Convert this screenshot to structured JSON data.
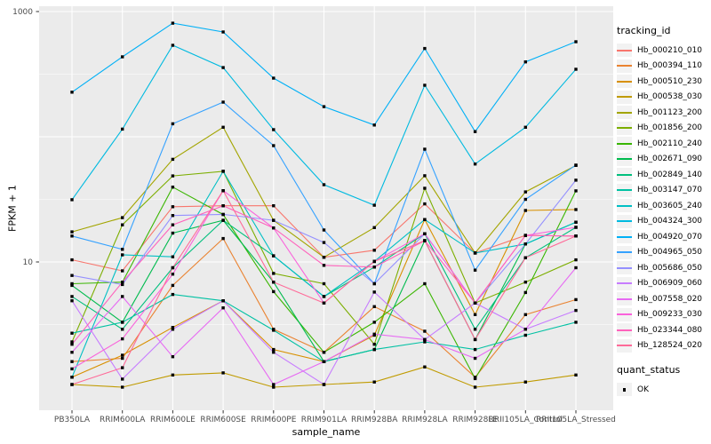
{
  "chart_data": {
    "type": "line",
    "title": "",
    "xlabel": "sample_name",
    "ylabel": "FPKM + 1",
    "y_scale": "log10",
    "y_tick_labels": [
      "1000",
      "10"
    ],
    "y_tick_values": [
      1000,
      10
    ],
    "y_major_grid": [
      10,
      100,
      1000
    ],
    "y_minor_grid": [
      3.162,
      31.62,
      316.2
    ],
    "ylim": [
      0.65,
      1085
    ],
    "panel_bg": "#EBEBEB",
    "grid_color": "#FFFFFF",
    "tick_color": "#333333",
    "tick_label_color": "#4D4D4D",
    "legend_title": "tracking_id",
    "legend_key_bg": "#F2F2F2",
    "point_shape": "filled-square",
    "point_color": "#000000",
    "point_legend": {
      "title": "quant_status",
      "items": [
        "OK"
      ]
    },
    "categories": [
      "PB350LA",
      "RRIM600LA",
      "RRIM600LE",
      "RRIM600SE",
      "RRIM600PE",
      "RRIM901LA",
      "RRIM928BA",
      "RRIM928LA",
      "RRIM928LE",
      "RRII105LA_Control",
      "RRII105LA_Stressed"
    ],
    "series": [
      {
        "name": "Hb_000210_010",
        "color": "#F8766D",
        "values": [
          10.4,
          8.5,
          27.6,
          28.1,
          28.1,
          10.9,
          12.4,
          29.1,
          11.8,
          16.3,
          16.1
        ]
      },
      {
        "name": "Hb_000394_110",
        "color": "#EA8331",
        "values": [
          1.6,
          1.7,
          6.5,
          15.4,
          2.9,
          1.9,
          4.4,
          2.8,
          1.2,
          3.8,
          5.0
        ]
      },
      {
        "name": "Hb_000510_230",
        "color": "#D89000",
        "values": [
          1.2,
          1.8,
          3.0,
          4.9,
          2.0,
          1.6,
          2.6,
          21.8,
          3.8,
          25.8,
          26.2
        ]
      },
      {
        "name": "Hb_000538_030",
        "color": "#C09B00",
        "values": [
          1.05,
          1.0,
          1.25,
          1.3,
          1.0,
          1.05,
          1.1,
          1.45,
          1.0,
          1.1,
          1.25
        ]
      },
      {
        "name": "Hb_001123_200",
        "color": "#A3A500",
        "values": [
          17.4,
          22.6,
          66,
          119,
          21.5,
          10.9,
          18.8,
          48.8,
          11.8,
          36.3,
          59
        ]
      },
      {
        "name": "Hb_001856_200",
        "color": "#7CAE00",
        "values": [
          2.3,
          19.8,
          48.7,
          53,
          8.1,
          6.7,
          2.2,
          38.8,
          4.7,
          6.9,
          10.4
        ]
      },
      {
        "name": "Hb_002110_240",
        "color": "#39B600",
        "values": [
          6.7,
          6.9,
          39.6,
          23.9,
          5.8,
          1.9,
          3.3,
          6.7,
          1.17,
          5.7,
          37
        ]
      },
      {
        "name": "Hb_002671_090",
        "color": "#00BB4E",
        "values": [
          6.5,
          3.3,
          17.0,
          21.5,
          6.9,
          1.6,
          2.0,
          14.8,
          2.4,
          13.9,
          20.8
        ]
      },
      {
        "name": "Hb_002849_140",
        "color": "#00BF7D",
        "values": [
          5.3,
          2.9,
          9.0,
          21.5,
          11.2,
          5.3,
          9.1,
          16.8,
          2.9,
          10.8,
          18.9
        ]
      },
      {
        "name": "Hb_003147_070",
        "color": "#00C1A3",
        "values": [
          2.7,
          3.3,
          5.5,
          4.9,
          2.85,
          1.6,
          2.0,
          2.3,
          2.0,
          2.6,
          3.3
        ]
      },
      {
        "name": "Hb_003605_240",
        "color": "#00BFC4",
        "values": [
          1.2,
          11.4,
          11.0,
          53,
          11.2,
          5.3,
          10.1,
          21.8,
          11.8,
          13.9,
          20.8
        ]
      },
      {
        "name": "Hb_004324_300",
        "color": "#00BAE0",
        "values": [
          31.4,
          115,
          538,
          357,
          114,
          41.4,
          28.4,
          258,
          60.6,
          119,
          346
        ]
      },
      {
        "name": "Hb_004920_070",
        "color": "#00B0F6",
        "values": [
          227,
          435,
          808,
          687,
          294,
          174,
          124,
          507,
          110,
          396,
          574
        ]
      },
      {
        "name": "Hb_004965_050",
        "color": "#35A2FF",
        "values": [
          16.1,
          12.6,
          127,
          189,
          85,
          18.0,
          6.7,
          79.6,
          8.6,
          31.6,
          59.4
        ]
      },
      {
        "name": "Hb_005686_050",
        "color": "#9590FF",
        "values": [
          7.8,
          6.6,
          23.5,
          24,
          21.5,
          14.3,
          6.7,
          16.8,
          4.7,
          13.9,
          45
        ]
      },
      {
        "name": "Hb_006909_060",
        "color": "#C77CFF",
        "values": [
          4.9,
          1.16,
          2.9,
          4.9,
          1.9,
          1.05,
          5.75,
          2.4,
          4.7,
          2.9,
          4.1
        ]
      },
      {
        "name": "Hb_007558_020",
        "color": "#E76BF3",
        "values": [
          1.9,
          5.3,
          1.75,
          4.3,
          1.05,
          1.6,
          2.65,
          2.4,
          1.7,
          2.9,
          9.0
        ]
      },
      {
        "name": "Hb_009233_030",
        "color": "#FA62DB",
        "values": [
          1.4,
          2.43,
          8.0,
          37.1,
          18.7,
          4.7,
          10.1,
          16.8,
          4.7,
          16.3,
          18.9
        ]
      },
      {
        "name": "Hb_023344_080",
        "color": "#FF62BC",
        "values": [
          2.2,
          6.9,
          19.8,
          28.1,
          18.7,
          9.4,
          9.1,
          14.8,
          4.7,
          16.3,
          16.1
        ]
      },
      {
        "name": "Hb_128524_020",
        "color": "#FF6A98",
        "values": [
          1.05,
          1.43,
          9.0,
          37.1,
          6.9,
          4.7,
          10.1,
          14.8,
          2.4,
          10.8,
          16.1
        ]
      }
    ]
  }
}
